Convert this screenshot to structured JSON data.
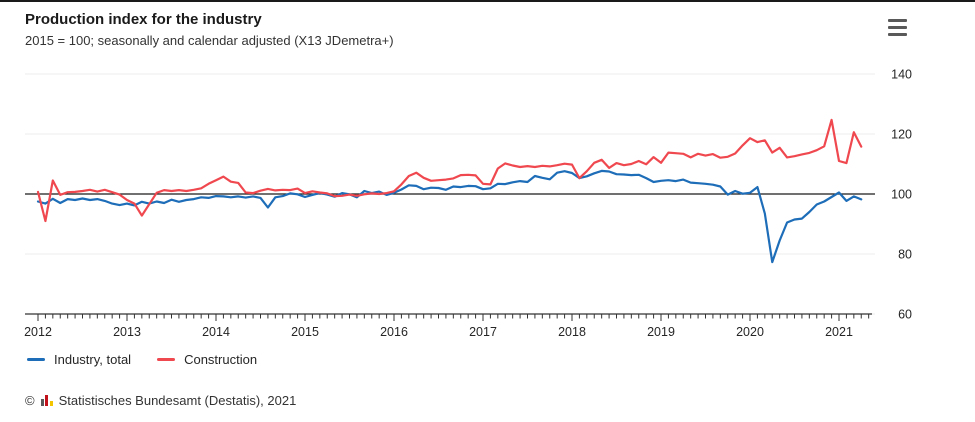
{
  "header": {
    "title": "Production index for the industry",
    "subtitle": "2015 = 100; seasonally and calendar adjusted (X13 JDemetra+)"
  },
  "menu": {
    "icon": "hamburger-menu-icon"
  },
  "legend": {
    "items": [
      {
        "label": "Industry, total",
        "color": "#1d6db8"
      },
      {
        "label": "Construction",
        "color": "#f0484f"
      }
    ]
  },
  "footer": {
    "copyright_symbol": "©",
    "logo": "destatis-bar-chart-icon",
    "text": "Statistisches Bundesamt (Destatis), 2021"
  },
  "chart_data": {
    "type": "line",
    "title": "Production index for the industry",
    "subtitle": "2015 = 100; seasonally and calendar adjusted (X13 JDemetra+)",
    "frequency": "monthly",
    "x_start": "2012-01",
    "x_end": "2021-04",
    "xticks": [
      2012,
      2013,
      2014,
      2015,
      2016,
      2017,
      2018,
      2019,
      2020,
      2021
    ],
    "ylim": [
      60,
      140
    ],
    "yticks": [
      60,
      80,
      100,
      120,
      140
    ],
    "reference_line": 100,
    "grid": "horizontal-light",
    "legend_position": "bottom-left",
    "colors": {
      "grid": "#ececec",
      "reference": "#1a1a1a",
      "axis": "#333333",
      "tick_label": "#262626"
    },
    "series": [
      {
        "name": "Industry, total",
        "color": "#1d6db8",
        "values": [
          97.5,
          96.8,
          98.4,
          97.0,
          98.3,
          98.0,
          98.5,
          98.0,
          98.3,
          97.7,
          96.8,
          96.3,
          96.8,
          96.2,
          97.4,
          96.8,
          97.5,
          97.0,
          98.1,
          97.4,
          98.0,
          98.3,
          98.9,
          98.7,
          99.3,
          99.2,
          98.9,
          99.2,
          98.8,
          99.2,
          98.7,
          95.5,
          98.9,
          99.3,
          100.2,
          99.9,
          99.0,
          99.7,
          100.3,
          99.8,
          99.1,
          100.3,
          99.9,
          98.9,
          101.0,
          100.3,
          100.8,
          99.7,
          100.4,
          101.5,
          102.9,
          102.7,
          101.6,
          102.1,
          102.0,
          101.4,
          102.5,
          102.3,
          102.7,
          102.6,
          101.6,
          101.9,
          103.4,
          103.3,
          103.9,
          104.3,
          104.0,
          106.0,
          105.4,
          104.9,
          107.1,
          107.6,
          107.0,
          105.3,
          105.9,
          106.9,
          107.7,
          107.5,
          106.6,
          106.5,
          106.3,
          106.4,
          105.3,
          104.0,
          104.4,
          104.6,
          104.3,
          104.8,
          103.8,
          103.6,
          103.4,
          103.1,
          102.5,
          99.8,
          101.0,
          100.1,
          100.4,
          102.3,
          93.5,
          77.3,
          84.5,
          90.5,
          91.5,
          91.8,
          94.0,
          96.5,
          97.5,
          99.0,
          100.5,
          97.7,
          99.2,
          98.2
        ]
      },
      {
        "name": "Construction",
        "color": "#f0484f",
        "values": [
          100.7,
          91.0,
          104.5,
          99.7,
          100.6,
          100.7,
          101.0,
          101.4,
          100.8,
          101.4,
          100.6,
          99.8,
          98.0,
          96.8,
          92.8,
          96.6,
          100.4,
          101.3,
          101.0,
          101.3,
          101.0,
          101.4,
          101.9,
          103.4,
          104.6,
          105.8,
          104.1,
          103.7,
          100.5,
          100.3,
          101.1,
          101.7,
          101.2,
          101.4,
          101.3,
          101.8,
          100.3,
          100.9,
          100.5,
          100.2,
          99.3,
          99.4,
          99.8,
          99.4,
          99.9,
          100.2,
          100.0,
          100.3,
          100.9,
          103.2,
          106.0,
          107.1,
          105.4,
          104.4,
          104.6,
          104.8,
          105.2,
          106.3,
          106.4,
          106.2,
          103.4,
          103.2,
          108.5,
          110.2,
          109.5,
          109.0,
          109.3,
          109.0,
          109.4,
          109.2,
          109.6,
          110.1,
          109.8,
          105.3,
          107.6,
          110.4,
          111.4,
          108.7,
          110.3,
          109.6,
          110.0,
          111.0,
          109.9,
          112.3,
          110.4,
          113.8,
          113.6,
          113.4,
          112.2,
          113.4,
          112.8,
          113.3,
          112.1,
          112.4,
          113.5,
          116.2,
          118.6,
          117.3,
          117.9,
          113.8,
          115.4,
          112.2,
          112.6,
          113.2,
          113.7,
          114.6,
          115.9,
          124.7,
          111.0,
          110.3,
          120.6,
          115.8
        ]
      }
    ]
  }
}
